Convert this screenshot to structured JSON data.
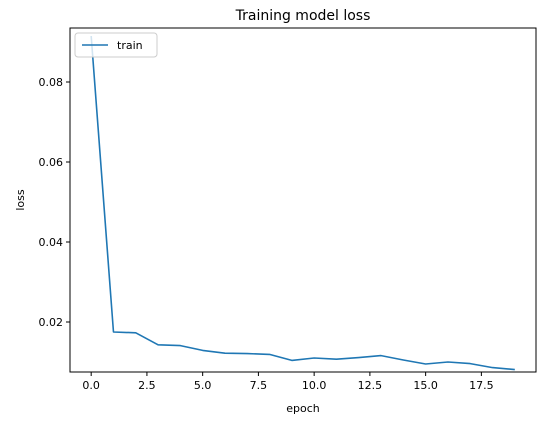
{
  "chart_data": {
    "type": "line",
    "title": "Training model loss",
    "xlabel": "epoch",
    "ylabel": "loss",
    "xlim": [
      -0.95,
      19.95
    ],
    "ylim": [
      0.0075,
      0.0935
    ],
    "xticks": [
      0.0,
      2.5,
      5.0,
      7.5,
      10.0,
      12.5,
      15.0,
      17.5
    ],
    "xtick_labels": [
      "0.0",
      "2.5",
      "5.0",
      "7.5",
      "10.0",
      "12.5",
      "15.0",
      "17.5"
    ],
    "yticks": [
      0.02,
      0.04,
      0.06,
      0.08
    ],
    "ytick_labels": [
      "0.02",
      "0.04",
      "0.06",
      "0.08"
    ],
    "grid": false,
    "legend_position": "upper left",
    "series": [
      {
        "name": "train",
        "color": "#1f77b4",
        "x": [
          0,
          1,
          2,
          3,
          4,
          5,
          6,
          7,
          8,
          9,
          10,
          11,
          12,
          13,
          14,
          15,
          16,
          17,
          18,
          19
        ],
        "values": [
          0.0915,
          0.0175,
          0.0173,
          0.0143,
          0.0141,
          0.0129,
          0.0122,
          0.0121,
          0.0119,
          0.0104,
          0.011,
          0.0107,
          0.0111,
          0.0116,
          0.0105,
          0.0095,
          0.01,
          0.0096,
          0.0086,
          0.0081
        ]
      }
    ]
  }
}
